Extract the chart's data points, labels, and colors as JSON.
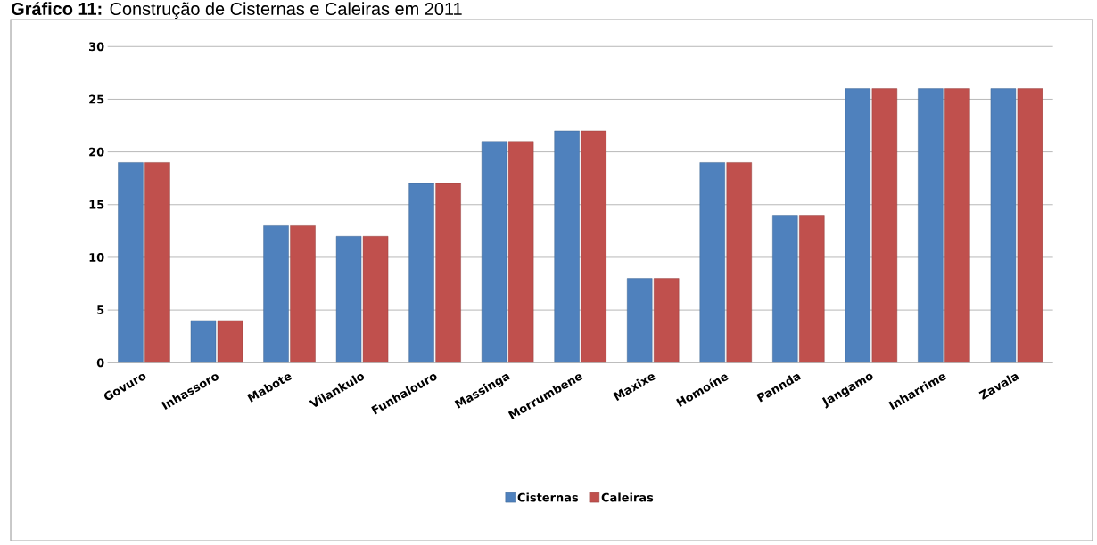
{
  "chart_data": {
    "type": "bar",
    "title": "**Gráfico 11:** Construção de Cisternas e Caleiras em 2011",
    "categories": [
      "Govuro",
      "Inhassoro",
      "Mabote",
      "Vilankulo",
      "Funhalouro",
      "Massinga",
      "Morrumbene",
      "Maxixe",
      "Homoíne",
      "Pannda",
      "Jangamo",
      "Inharrime",
      "Zavala"
    ],
    "series": [
      {
        "name": "Cisternas",
        "color": "#4f81bd",
        "values": [
          19,
          4,
          13,
          12,
          17,
          21,
          22,
          8,
          19,
          14,
          26,
          26,
          26
        ]
      },
      {
        "name": "Caleiras",
        "color": "#c0504d",
        "values": [
          19,
          4,
          13,
          12,
          17,
          21,
          22,
          8,
          19,
          14,
          26,
          26,
          26
        ]
      }
    ],
    "ylim": [
      0,
      30
    ],
    "yticks": [
      0,
      5,
      10,
      15,
      20,
      25,
      30
    ],
    "grid": "y",
    "legend": "bottom"
  }
}
